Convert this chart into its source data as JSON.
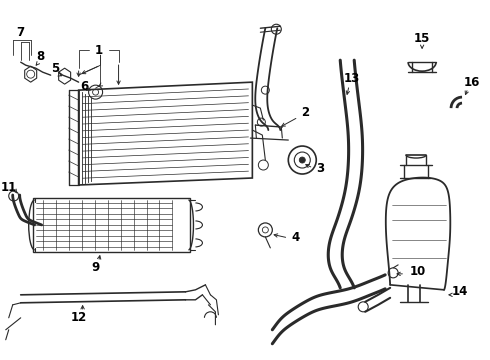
{
  "background_color": "#ffffff",
  "line_color": "#2a2a2a",
  "label_color": "#000000",
  "figsize": [
    4.9,
    3.6
  ],
  "dpi": 100,
  "xlim": [
    0,
    490
  ],
  "ylim": [
    0,
    360
  ]
}
